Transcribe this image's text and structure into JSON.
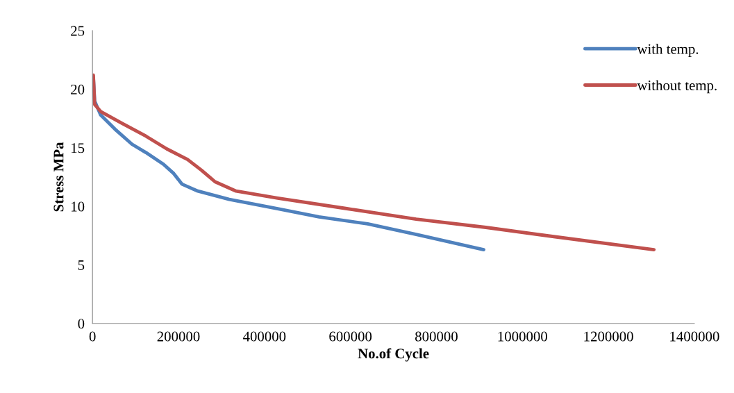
{
  "chart_data": {
    "type": "line",
    "xlabel": "No.of Cycle",
    "ylabel": "Stress MPa",
    "xlim": [
      0,
      1400000
    ],
    "xticks": [
      0,
      200000,
      400000,
      600000,
      800000,
      1000000,
      1200000,
      1400000
    ],
    "ylim": [
      0,
      25
    ],
    "yticks": [
      0,
      5,
      10,
      15,
      20,
      25
    ],
    "grid": false,
    "legend": "top right",
    "marker": "none",
    "line_style": "solid",
    "series": [
      {
        "name": "with temp.",
        "color": "#4f81bd",
        "x": [
          2000,
          5000,
          19000,
          52000,
          92000,
          124000,
          165000,
          189000,
          208000,
          245000,
          318000,
          431000,
          527000,
          640000,
          753000,
          910000
        ],
        "values": [
          21.0,
          19.0,
          17.8,
          16.6,
          15.3,
          14.6,
          13.6,
          12.8,
          11.9,
          11.3,
          10.6,
          9.8,
          9.1,
          8.5,
          7.6,
          6.3
        ]
      },
      {
        "name": "without temp.",
        "color": "#c0504d",
        "x": [
          2000,
          5000,
          19000,
          68000,
          124000,
          173000,
          221000,
          253000,
          285000,
          334000,
          431000,
          592000,
          753000,
          915000,
          1076000,
          1306000
        ],
        "values": [
          21.2,
          18.7,
          18.1,
          17.1,
          16.0,
          14.9,
          14.0,
          13.1,
          12.1,
          11.3,
          10.7,
          9.8,
          8.9,
          8.2,
          7.4,
          6.3
        ]
      }
    ]
  }
}
